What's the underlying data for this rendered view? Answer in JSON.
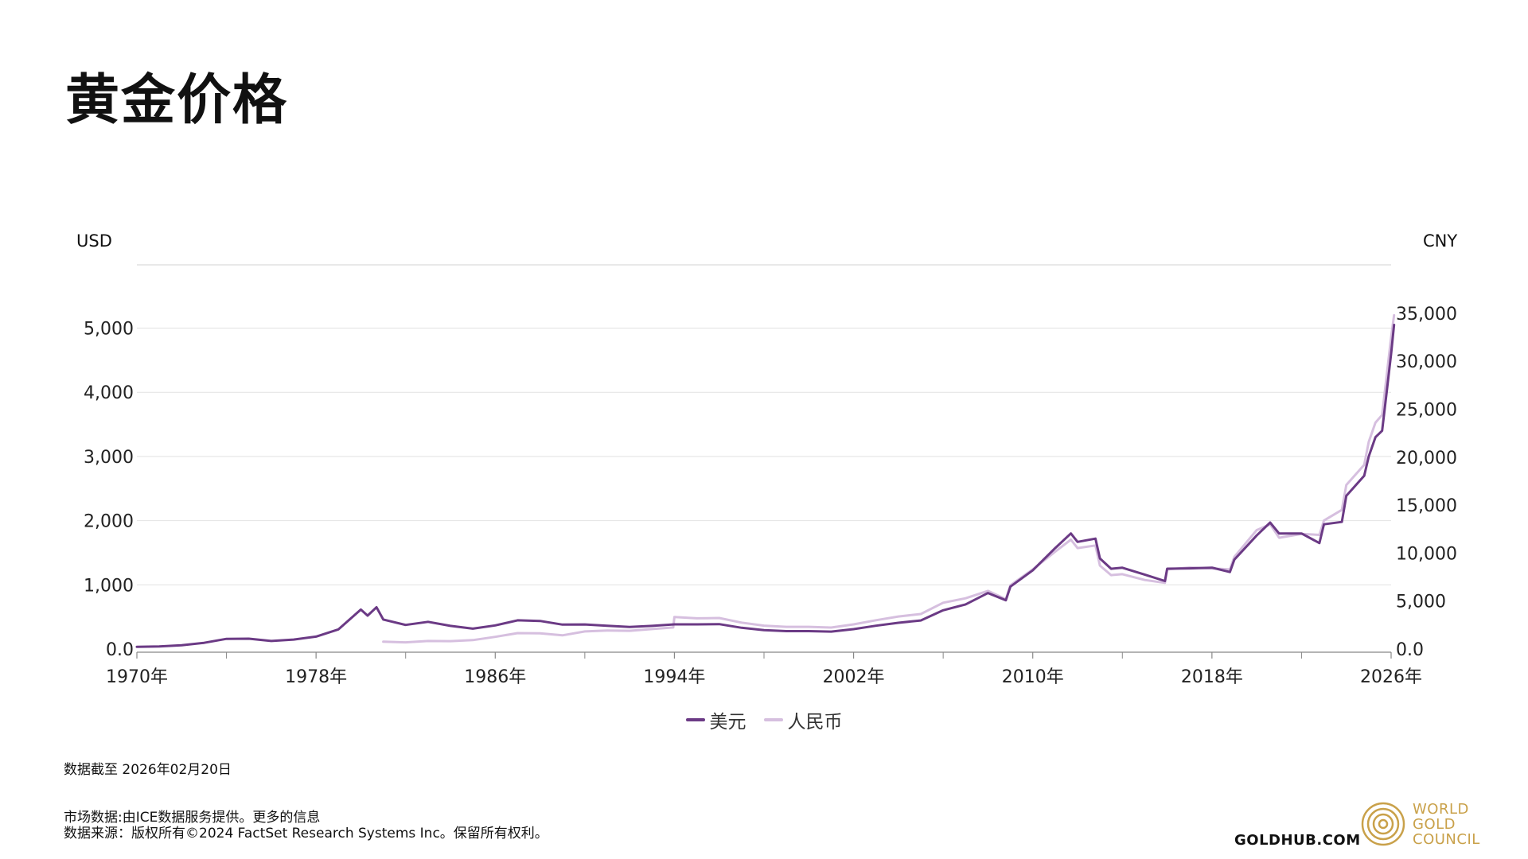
{
  "title": "黄金价格",
  "colors": {
    "usd": "#6b3a85",
    "cny": "#d6bfdf",
    "grid": "#e2e2e2",
    "axis": "#888888",
    "gold": "#c9a14a"
  },
  "chart_data": {
    "type": "line",
    "left_axis": {
      "unit": "USD",
      "ticks": [
        0,
        1000,
        2000,
        3000,
        4000,
        5000
      ],
      "tick_labels": [
        "0.0",
        "1,000",
        "2,000",
        "3,000",
        "4,000",
        "5,000"
      ],
      "range": [
        0,
        6000
      ]
    },
    "right_axis": {
      "unit": "CNY",
      "ticks": [
        0,
        5000,
        10000,
        15000,
        20000,
        25000,
        30000,
        35000
      ],
      "tick_labels": [
        "0.0",
        "5,000",
        "10,000",
        "15,000",
        "20,000",
        "25,000",
        "30,000",
        "35,000"
      ],
      "range": [
        0,
        42000
      ]
    },
    "x_axis": {
      "range": [
        1970,
        2026
      ],
      "major_ticks": [
        1970,
        1978,
        1986,
        1994,
        2002,
        2010,
        2018,
        2026
      ],
      "tick_labels": [
        "1970年",
        "1978年",
        "1986年",
        "1994年",
        "2002年",
        "2010年",
        "2018年",
        "2026年"
      ],
      "minor_ticks": [
        1974,
        1982,
        1990,
        1998,
        2006,
        2014,
        2022
      ]
    },
    "grid": true,
    "legend": "bottom-center",
    "series": [
      {
        "name": "美元",
        "axis": "left",
        "points": [
          [
            1970,
            35
          ],
          [
            1971,
            41
          ],
          [
            1972,
            58
          ],
          [
            1973,
            97
          ],
          [
            1974,
            159
          ],
          [
            1975,
            161
          ],
          [
            1976,
            125
          ],
          [
            1977,
            148
          ],
          [
            1978,
            193
          ],
          [
            1979,
            306
          ],
          [
            1980,
            615
          ],
          [
            1980.3,
            520
          ],
          [
            1980.7,
            650
          ],
          [
            1981,
            460
          ],
          [
            1982,
            375
          ],
          [
            1983,
            424
          ],
          [
            1984,
            361
          ],
          [
            1985,
            317
          ],
          [
            1986,
            368
          ],
          [
            1987,
            447
          ],
          [
            1988,
            437
          ],
          [
            1989,
            381
          ],
          [
            1990,
            383
          ],
          [
            1991,
            362
          ],
          [
            1992,
            344
          ],
          [
            1993,
            360
          ],
          [
            1994,
            384
          ],
          [
            1995,
            384
          ],
          [
            1996,
            388
          ],
          [
            1997,
            331
          ],
          [
            1998,
            294
          ],
          [
            1999,
            279
          ],
          [
            2000,
            279
          ],
          [
            2001,
            271
          ],
          [
            2002,
            310
          ],
          [
            2003,
            363
          ],
          [
            2004,
            409
          ],
          [
            2005,
            445
          ],
          [
            2006,
            604
          ],
          [
            2007,
            695
          ],
          [
            2008,
            872
          ],
          [
            2008.8,
            760
          ],
          [
            2009,
            972
          ],
          [
            2010,
            1225
          ],
          [
            2011,
            1572
          ],
          [
            2011.7,
            1800
          ],
          [
            2012,
            1669
          ],
          [
            2012.8,
            1720
          ],
          [
            2013,
            1411
          ],
          [
            2013.5,
            1250
          ],
          [
            2014,
            1266
          ],
          [
            2015,
            1160
          ],
          [
            2015.9,
            1060
          ],
          [
            2016,
            1251
          ],
          [
            2017,
            1257
          ],
          [
            2018,
            1268
          ],
          [
            2018.8,
            1200
          ],
          [
            2019,
            1393
          ],
          [
            2020,
            1770
          ],
          [
            2020.6,
            1970
          ],
          [
            2021,
            1799
          ],
          [
            2022,
            1800
          ],
          [
            2022.8,
            1650
          ],
          [
            2023,
            1943
          ],
          [
            2023.8,
            1980
          ],
          [
            2024,
            2386
          ],
          [
            2024.8,
            2700
          ],
          [
            2025,
            3000
          ],
          [
            2025.3,
            3300
          ],
          [
            2025.6,
            3400
          ],
          [
            2025.8,
            4000
          ],
          [
            2026,
            4600
          ],
          [
            2026.13,
            5050
          ]
        ]
      },
      {
        "name": "人民币",
        "axis": "right",
        "points": [
          [
            1981,
            760
          ],
          [
            1982,
            700
          ],
          [
            1983,
            840
          ],
          [
            1984,
            820
          ],
          [
            1985,
            930
          ],
          [
            1986,
            1270
          ],
          [
            1987,
            1660
          ],
          [
            1988,
            1630
          ],
          [
            1989,
            1430
          ],
          [
            1990,
            1830
          ],
          [
            1991,
            1930
          ],
          [
            1992,
            1900
          ],
          [
            1993,
            2080
          ],
          [
            1993.95,
            2250
          ],
          [
            1994,
            3330
          ],
          [
            1995,
            3200
          ],
          [
            1996,
            3230
          ],
          [
            1997,
            2750
          ],
          [
            1998,
            2440
          ],
          [
            1999,
            2310
          ],
          [
            2000,
            2310
          ],
          [
            2001,
            2240
          ],
          [
            2002,
            2570
          ],
          [
            2003,
            3000
          ],
          [
            2004,
            3390
          ],
          [
            2005,
            3650
          ],
          [
            2006,
            4830
          ],
          [
            2007,
            5290
          ],
          [
            2008,
            6060
          ],
          [
            2008.8,
            5200
          ],
          [
            2009,
            6640
          ],
          [
            2010,
            8300
          ],
          [
            2011,
            10150
          ],
          [
            2011.7,
            11400
          ],
          [
            2012,
            10520
          ],
          [
            2012.8,
            10800
          ],
          [
            2013,
            8700
          ],
          [
            2013.5,
            7700
          ],
          [
            2014,
            7800
          ],
          [
            2015,
            7200
          ],
          [
            2015.9,
            6900
          ],
          [
            2016,
            8300
          ],
          [
            2017,
            8500
          ],
          [
            2018,
            8400
          ],
          [
            2018.8,
            8300
          ],
          [
            2019,
            9600
          ],
          [
            2020,
            12400
          ],
          [
            2020.6,
            13000
          ],
          [
            2021,
            11600
          ],
          [
            2022,
            12000
          ],
          [
            2022.8,
            11900
          ],
          [
            2023,
            13400
          ],
          [
            2023.8,
            14500
          ],
          [
            2024,
            17100
          ],
          [
            2024.8,
            19200
          ],
          [
            2025,
            21600
          ],
          [
            2025.3,
            23600
          ],
          [
            2025.6,
            24400
          ],
          [
            2025.8,
            28500
          ],
          [
            2026,
            32500
          ],
          [
            2026.13,
            34800
          ]
        ]
      }
    ]
  },
  "legend": {
    "usd_label": "美元",
    "cny_label": "人民币"
  },
  "note": "数据截至 2026年02月20日",
  "footer": {
    "line1": "市场数据:由ICE数据服务提供。更多的信息",
    "line2": "数据来源：版权所有©2024 FactSet Research Systems Inc。保留所有权利。"
  },
  "branding": {
    "goldhub": "GOLDHUB.COM",
    "wgc_line1": "WORLD",
    "wgc_line2": "GOLD",
    "wgc_line3": "COUNCIL"
  }
}
